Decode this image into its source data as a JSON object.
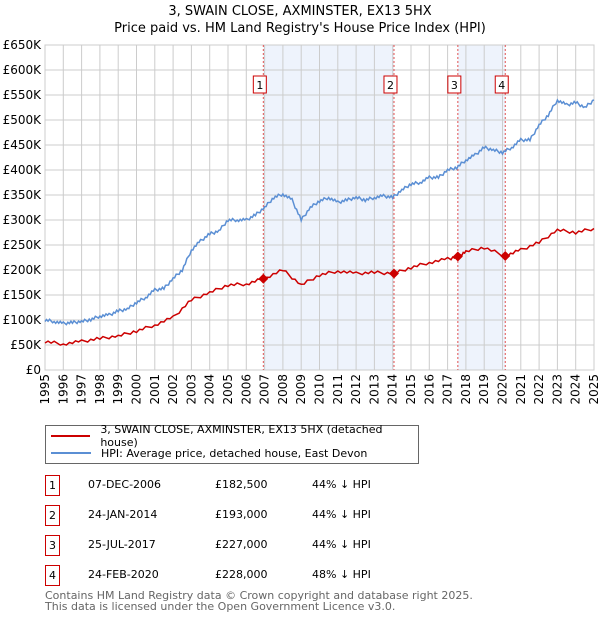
{
  "chart_data": {
    "type": "line",
    "title": "3, SWAIN CLOSE, AXMINSTER, EX13 5HX",
    "subtitle": "Price paid vs. HM Land Registry's House Price Index (HPI)",
    "xlim": [
      1995,
      2025
    ],
    "ylim": [
      0,
      650000
    ],
    "y_ticks": [
      0,
      50000,
      100000,
      150000,
      200000,
      250000,
      300000,
      350000,
      400000,
      450000,
      500000,
      550000,
      600000,
      650000
    ],
    "y_tick_labels": [
      "£0",
      "£50K",
      "£100K",
      "£150K",
      "£200K",
      "£250K",
      "£300K",
      "£350K",
      "£400K",
      "£450K",
      "£500K",
      "£550K",
      "£600K",
      "£650K"
    ],
    "x_tick_labels": [
      "1995",
      "1996",
      "1997",
      "1998",
      "1999",
      "2000",
      "2001",
      "2002",
      "2003",
      "2004",
      "2005",
      "2006",
      "2007",
      "2008",
      "2009",
      "2010",
      "2011",
      "2012",
      "2013",
      "2014",
      "2015",
      "2016",
      "2017",
      "2018",
      "2019",
      "2020",
      "2021",
      "2022",
      "2023",
      "2024",
      "2025"
    ],
    "grid": true,
    "series": [
      {
        "name": "HPI: Average price, detached house, East Devon",
        "color": "#5b8fd4",
        "x": [
          1995,
          1995.5,
          1996,
          1996.5,
          1997,
          1997.5,
          1998,
          1998.5,
          1999,
          1999.5,
          2000,
          2000.5,
          2001,
          2001.5,
          2002,
          2002.5,
          2003,
          2003.5,
          2004,
          2004.5,
          2005,
          2005.5,
          2006,
          2006.5,
          2007,
          2007.5,
          2008,
          2008.5,
          2009,
          2009.5,
          2010,
          2010.5,
          2011,
          2011.5,
          2012,
          2012.5,
          2013,
          2013.5,
          2014,
          2014.5,
          2015,
          2015.5,
          2016,
          2016.5,
          2017,
          2017.5,
          2018,
          2018.5,
          2019,
          2019.5,
          2020,
          2020.5,
          2021,
          2021.5,
          2022,
          2022.5,
          2023,
          2023.5,
          2024,
          2024.5,
          2025
        ],
        "y": [
          100,
          97,
          93,
          95,
          97,
          101,
          108,
          110,
          118,
          122,
          135,
          145,
          160,
          163,
          183,
          200,
          240,
          258,
          272,
          278,
          300,
          300,
          300,
          310,
          325,
          345,
          352,
          340,
          300,
          325,
          338,
          345,
          335,
          340,
          345,
          340,
          345,
          348,
          345,
          360,
          372,
          375,
          385,
          385,
          400,
          405,
          420,
          430,
          445,
          440,
          435,
          445,
          460,
          460,
          490,
          510,
          540,
          530,
          535,
          525,
          540
        ]
      },
      {
        "name": "3, SWAIN CLOSE, AXMINSTER, EX13 5HX (detached house)",
        "color": "#cc0000",
        "x": [
          1995,
          1996,
          1997,
          1998,
          1999,
          2000,
          2001,
          2002,
          2003,
          2004,
          2005,
          2006,
          2006.93,
          2008,
          2009,
          2010,
          2011,
          2012,
          2013,
          2014.07,
          2015,
          2016,
          2017,
          2017.56,
          2018,
          2019,
          2020.15,
          2021,
          2022,
          2023,
          2024,
          2025
        ],
        "y": [
          57,
          52,
          57,
          63,
          68,
          78,
          90,
          105,
          140,
          155,
          170,
          172,
          182.5,
          200,
          170,
          190,
          198,
          193,
          195,
          193,
          205,
          215,
          222,
          227,
          237,
          245,
          228,
          240,
          255,
          280,
          275,
          283
        ]
      }
    ],
    "sales": [
      {
        "n": "1",
        "x": 2006.93,
        "date": "07-DEC-2006",
        "price": "£182,500",
        "delta": "44% ↓ HPI"
      },
      {
        "n": "2",
        "x": 2014.07,
        "date": "24-JAN-2014",
        "price": "£193,000",
        "delta": "44% ↓ HPI"
      },
      {
        "n": "3",
        "x": 2017.56,
        "date": "25-JUL-2017",
        "price": "£227,000",
        "delta": "44% ↓ HPI"
      },
      {
        "n": "4",
        "x": 2020.15,
        "date": "24-FEB-2020",
        "price": "£228,000",
        "delta": "48% ↓ HPI"
      }
    ]
  },
  "legend": {
    "property": "3, SWAIN CLOSE, AXMINSTER, EX13 5HX (detached house)",
    "hpi": "HPI: Average price, detached house, East Devon"
  },
  "footer": {
    "line1": "Contains HM Land Registry data © Crown copyright and database right 2025.",
    "line2": "This data is licensed under the Open Government Licence v3.0."
  }
}
